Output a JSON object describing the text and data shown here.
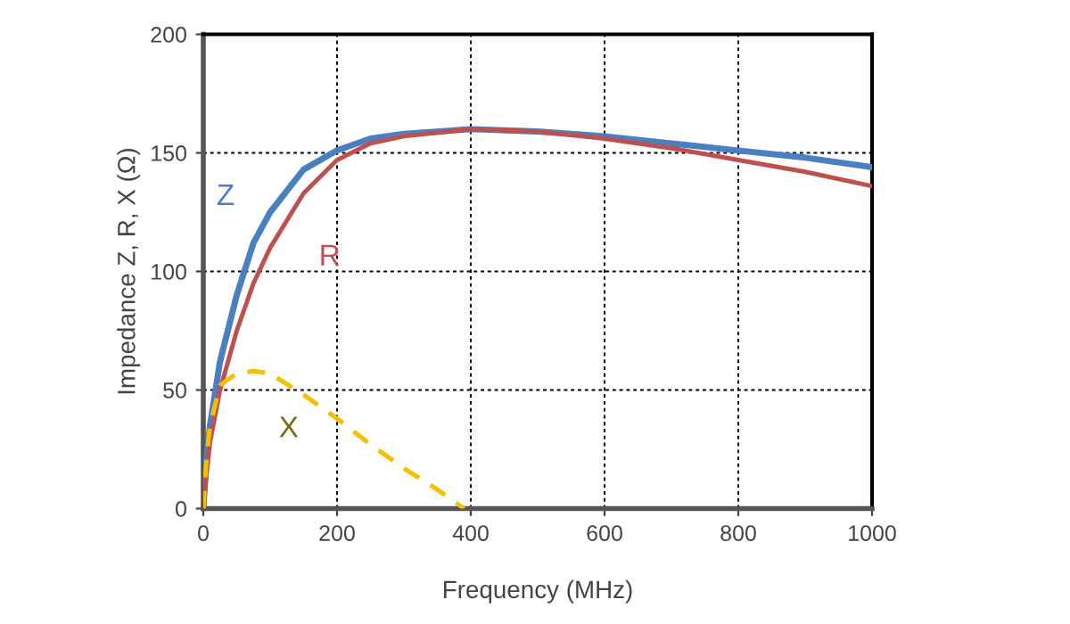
{
  "chart_data": {
    "type": "line",
    "xlabel": "Frequency (MHz)",
    "ylabel": "Impedance Z, R, X (Ω)",
    "xlim": [
      0,
      1000
    ],
    "ylim": [
      0,
      200
    ],
    "xticks": [
      0,
      200,
      400,
      600,
      800,
      1000
    ],
    "yticks": [
      0,
      50,
      100,
      150,
      200
    ],
    "grid": true,
    "legend": false,
    "marker": "none",
    "series": [
      {
        "name": "Z",
        "color": "#4a7fc1",
        "line_style": "solid",
        "x": [
          0,
          5,
          10,
          25,
          50,
          75,
          100,
          150,
          200,
          250,
          300,
          400,
          500,
          600,
          700,
          800,
          900,
          1000
        ],
        "values": [
          0,
          22,
          35,
          62,
          90,
          112,
          125,
          143,
          151,
          156,
          158,
          160,
          159,
          157,
          154,
          151,
          148,
          144
        ]
      },
      {
        "name": "R",
        "color": "#c0504d",
        "line_style": "solid",
        "x": [
          0,
          5,
          10,
          25,
          50,
          75,
          100,
          150,
          200,
          250,
          300,
          400,
          500,
          600,
          700,
          800,
          900,
          1000
        ],
        "values": [
          0,
          15,
          28,
          50,
          75,
          95,
          110,
          133,
          147,
          154,
          157,
          160,
          159,
          156,
          152,
          147,
          142,
          136
        ]
      },
      {
        "name": "X",
        "color": "#f5c000",
        "line_style": "dashed",
        "x": [
          0,
          5,
          10,
          25,
          50,
          75,
          100,
          150,
          200,
          250,
          300,
          350,
          390
        ],
        "values": [
          0,
          22,
          35,
          52,
          57,
          58,
          57,
          48,
          38,
          27,
          17,
          8,
          0
        ]
      }
    ]
  }
}
